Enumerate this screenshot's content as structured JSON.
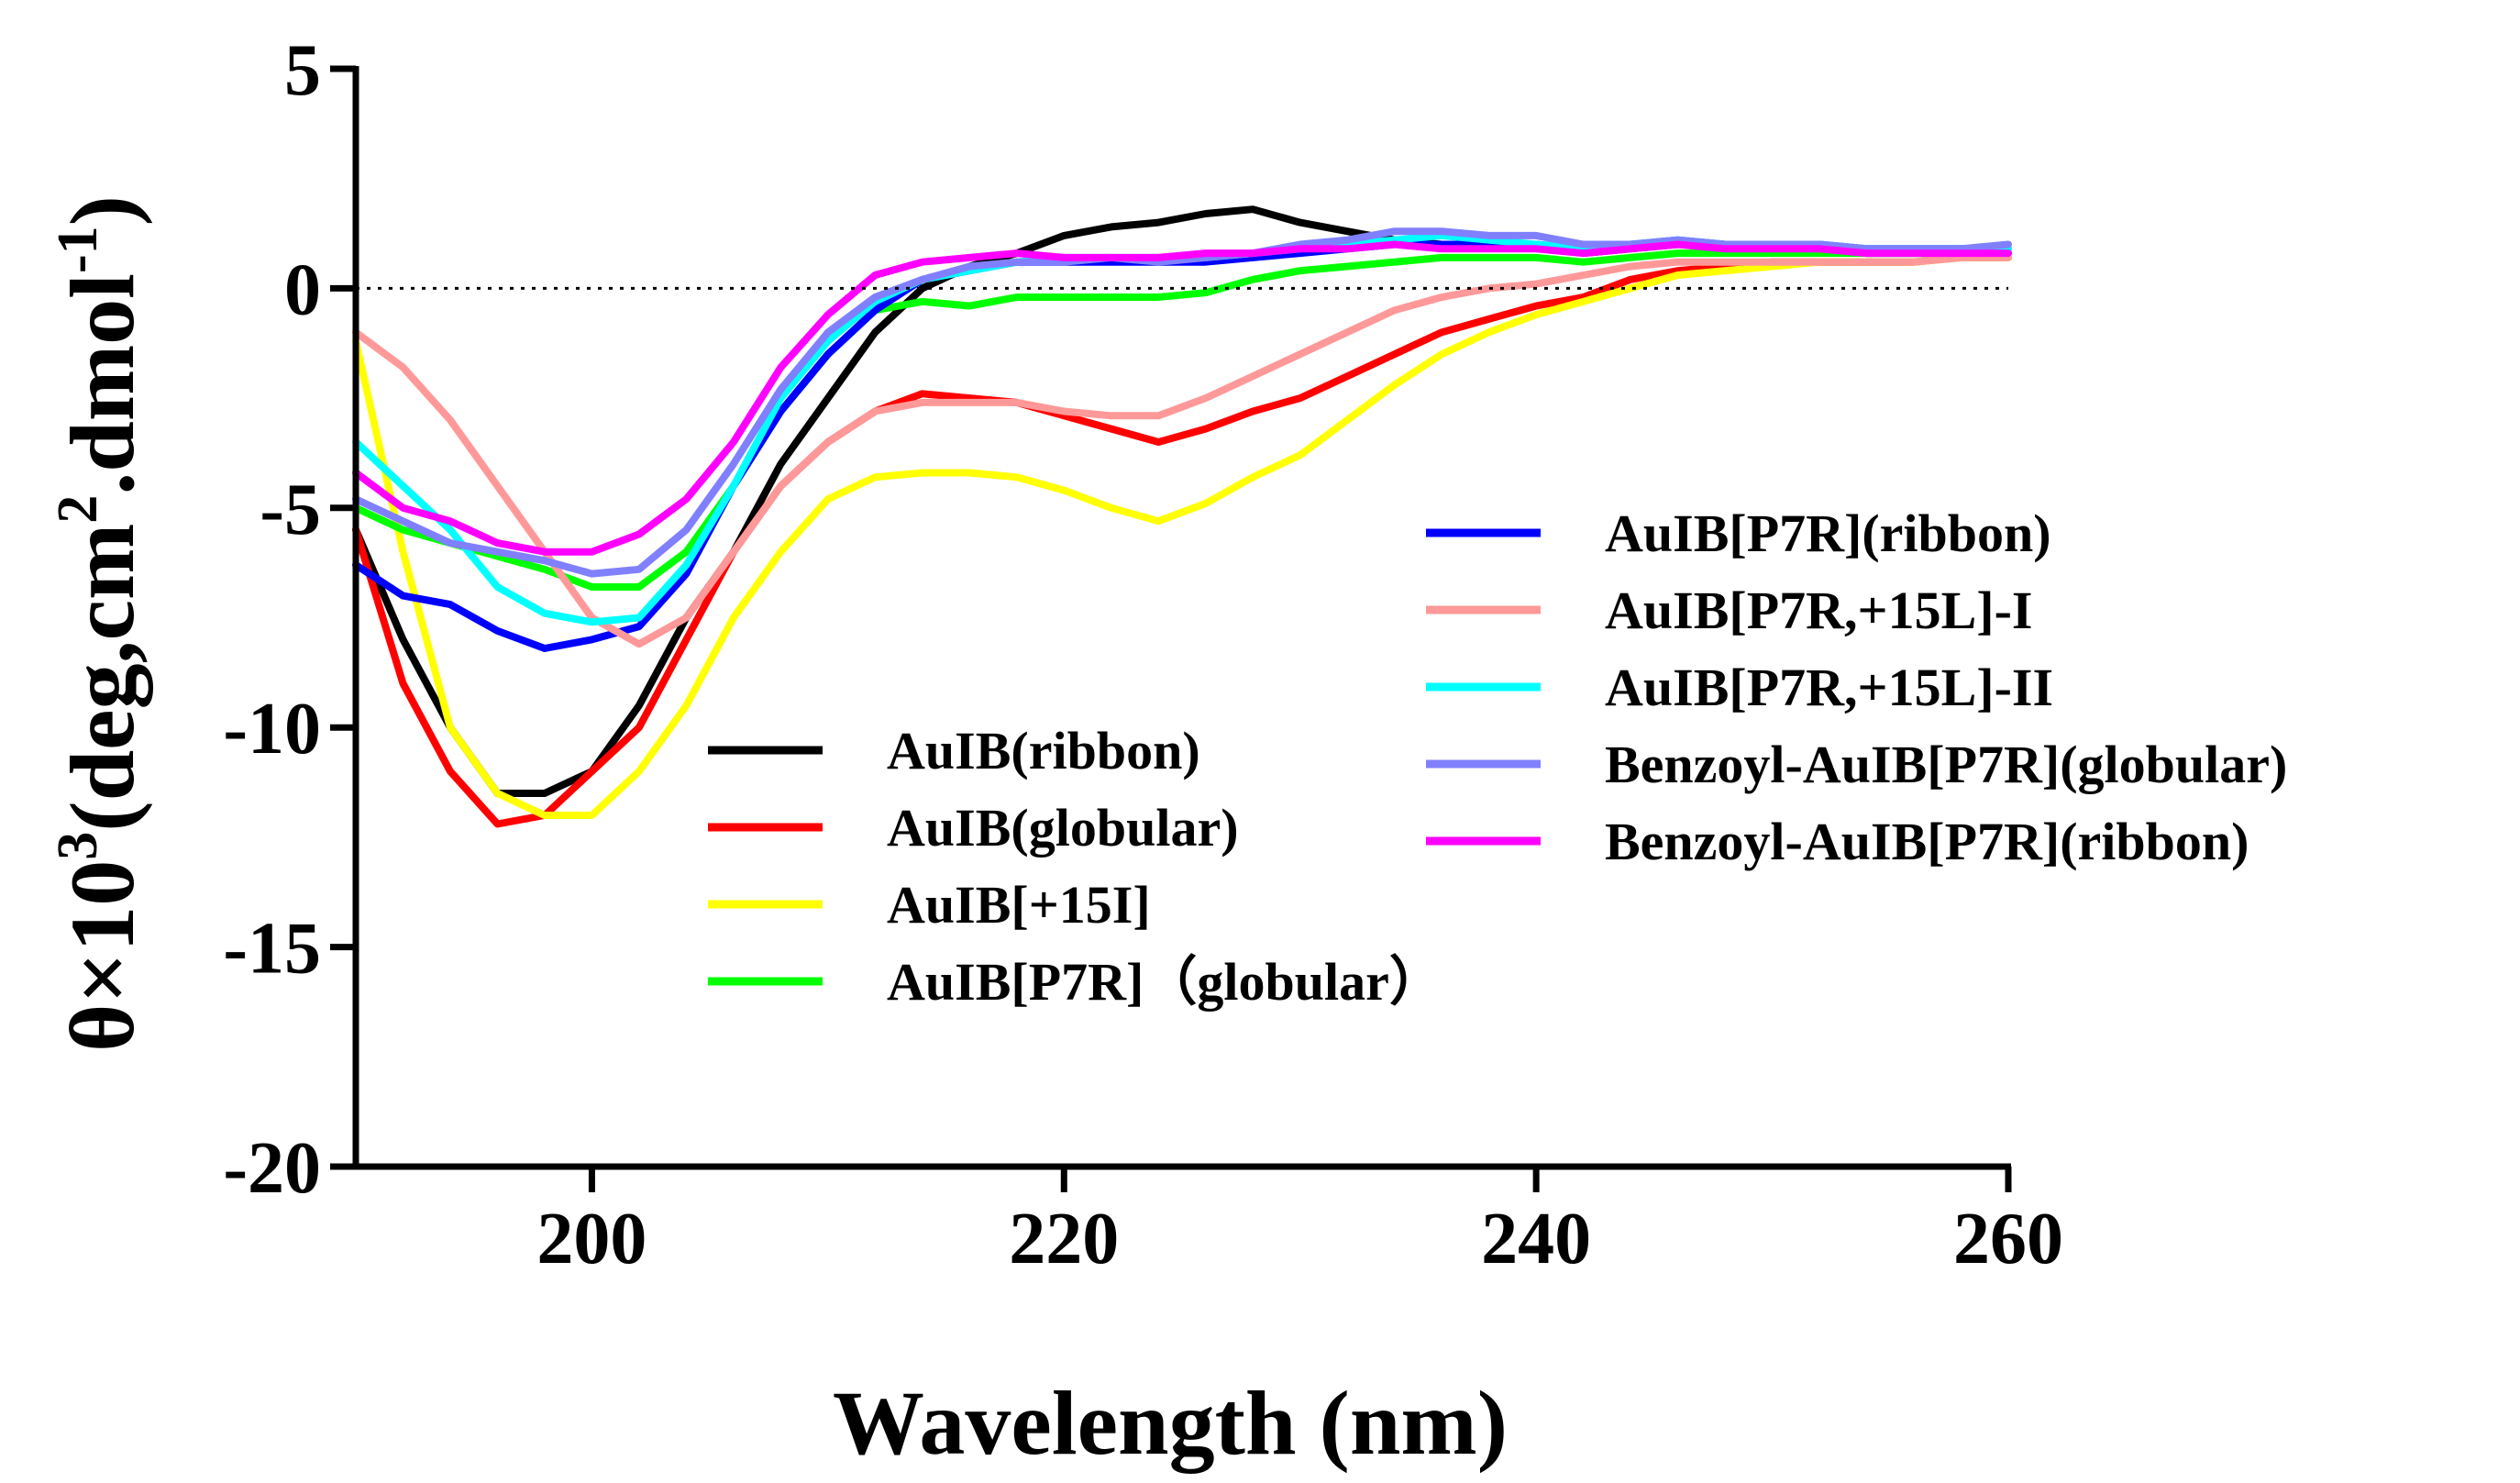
{
  "chart_data": {
    "type": "line",
    "title": "",
    "xlabel": "Wavelength (nm)",
    "ylabel": {
      "prefix": "θ×10",
      "prefix_sup": "3",
      "mid": "(deg,cm",
      "mid_sup": "2",
      "suffix": ".dmol",
      "suffix_sup": "-1",
      "end": ")"
    },
    "xlim": [
      190,
      260
    ],
    "ylim": [
      -20,
      5
    ],
    "xticks": [
      200,
      220,
      240,
      260
    ],
    "xtick_labels": [
      "200",
      "220",
      "240",
      "260"
    ],
    "yticks": [
      5,
      0,
      -5,
      -10,
      -15,
      -20
    ],
    "ytick_labels": [
      "5",
      "0",
      "-5",
      "-10",
      "-15",
      "-20"
    ],
    "zero_line": true,
    "legend_left": [
      {
        "label": "AuIB(ribbon)",
        "color": "#000000"
      },
      {
        "label": "AuIB(globular)",
        "color": "#ff0000"
      },
      {
        "label": "AuIB[+15I]",
        "color": "#ffff00"
      },
      {
        "label": "AuIB[P7R]（globular）",
        "color": "#00ff00"
      }
    ],
    "legend_right": [
      {
        "label": "AuIB[P7R](ribbon)",
        "color": "#0000ff"
      },
      {
        "label": "AuIB[P7R,+15L]-I",
        "color": "#ff9999"
      },
      {
        "label": "AuIB[P7R,+15L]-II",
        "color": "#00ffff"
      },
      {
        "label": "Benzoyl-AuIB[P7R](globular)",
        "color": "#8080ff"
      },
      {
        "label": "Benzoyl-AuIB[P7R](ribbon)",
        "color": "#ff00ff"
      }
    ],
    "x": [
      190,
      192,
      194,
      196,
      198,
      200,
      202,
      204,
      206,
      208,
      210,
      212,
      214,
      216,
      218,
      220,
      222,
      224,
      226,
      228,
      230,
      232,
      234,
      236,
      238,
      240,
      242,
      244,
      246,
      248,
      250,
      252,
      254,
      256,
      258,
      260
    ],
    "series": [
      {
        "name": "AuIB(ribbon)",
        "color": "#000000",
        "values": [
          -5.5,
          -8,
          -10,
          -11.5,
          -11.5,
          -11,
          -9.5,
          -7.5,
          -6,
          -4,
          -2.5,
          -1,
          0,
          0.5,
          0.8,
          1.2,
          1.4,
          1.5,
          1.7,
          1.8,
          1.5,
          1.3,
          1.1,
          1.0,
          1.0,
          1.0,
          0.8,
          0.9,
          1.0,
          1.0,
          0.9,
          0.9,
          0.8,
          0.8,
          0.8,
          0.8
        ]
      },
      {
        "name": "AuIB(globular)",
        "color": "#ff0000",
        "values": [
          -5.5,
          -9,
          -11,
          -12.2,
          -12,
          -11,
          -10,
          -8,
          -6,
          -4.5,
          -3.5,
          -2.8,
          -2.4,
          -2.5,
          -2.6,
          -2.9,
          -3.2,
          -3.5,
          -3.2,
          -2.8,
          -2.5,
          -2.0,
          -1.5,
          -1.0,
          -0.7,
          -0.4,
          -0.2,
          0.2,
          0.4,
          0.5,
          0.6,
          0.6,
          0.6,
          0.6,
          0.7,
          0.7
        ]
      },
      {
        "name": "AuIB[+15I]",
        "color": "#ffff00",
        "values": [
          -1.2,
          -6,
          -10,
          -11.5,
          -12,
          -12,
          -11,
          -9.5,
          -7.5,
          -6,
          -4.8,
          -4.3,
          -4.2,
          -4.2,
          -4.3,
          -4.6,
          -5.0,
          -5.3,
          -4.9,
          -4.3,
          -3.8,
          -3.0,
          -2.2,
          -1.5,
          -1.0,
          -0.6,
          -0.3,
          0.0,
          0.3,
          0.4,
          0.5,
          0.6,
          0.6,
          0.6,
          0.7,
          0.7
        ]
      },
      {
        "name": "AuIB[P7R]（globular）",
        "color": "#00ff00",
        "values": [
          -5,
          -5.5,
          -5.8,
          -6.1,
          -6.4,
          -6.8,
          -6.8,
          -6,
          -4.5,
          -2.8,
          -1.5,
          -0.5,
          -0.3,
          -0.4,
          -0.2,
          -0.2,
          -0.2,
          -0.2,
          -0.1,
          0.2,
          0.4,
          0.5,
          0.6,
          0.7,
          0.7,
          0.7,
          0.6,
          0.7,
          0.8,
          0.8,
          0.8,
          0.8,
          0.8,
          0.8,
          0.8,
          0.9
        ]
      },
      {
        "name": "AuIB[P7R](ribbon)",
        "color": "#0000ff",
        "values": [
          -6.3,
          -7,
          -7.2,
          -7.8,
          -8.2,
          -8,
          -7.7,
          -6.5,
          -4.5,
          -2.8,
          -1.5,
          -0.5,
          0.2,
          0.4,
          0.6,
          0.6,
          0.6,
          0.6,
          0.6,
          0.7,
          0.8,
          0.9,
          1.0,
          1.0,
          1.0,
          1.0,
          0.9,
          1.0,
          1.1,
          1.0,
          1.0,
          1.0,
          0.9,
          0.9,
          0.9,
          0.9
        ]
      },
      {
        "name": "AuIB[P7R,+15L]-I",
        "color": "#ff9999",
        "values": [
          -1,
          -1.8,
          -3,
          -4.5,
          -6,
          -7.5,
          -8.1,
          -7.5,
          -6,
          -4.5,
          -3.5,
          -2.8,
          -2.6,
          -2.6,
          -2.6,
          -2.8,
          -2.9,
          -2.9,
          -2.5,
          -2.0,
          -1.5,
          -1.0,
          -0.5,
          -0.2,
          0.0,
          0.1,
          0.3,
          0.5,
          0.6,
          0.6,
          0.6,
          0.6,
          0.6,
          0.6,
          0.7,
          0.7
        ]
      },
      {
        "name": "AuIB[P7R,+15L]-II",
        "color": "#00ffff",
        "values": [
          -3.5,
          -4.5,
          -5.5,
          -6.8,
          -7.4,
          -7.6,
          -7.5,
          -6.3,
          -4.5,
          -2.5,
          -1.2,
          -0.3,
          0.2,
          0.4,
          0.6,
          0.7,
          0.7,
          0.7,
          0.7,
          0.8,
          0.9,
          1.0,
          1.1,
          1.2,
          1.1,
          1.0,
          0.9,
          1.0,
          1.1,
          1.0,
          1.0,
          1.0,
          0.9,
          0.9,
          0.9,
          0.9
        ]
      },
      {
        "name": "Benzoyl-AuIB[P7R](globular)",
        "color": "#8080ff",
        "values": [
          -4.8,
          -5.3,
          -5.8,
          -6.0,
          -6.2,
          -6.5,
          -6.4,
          -5.5,
          -4,
          -2.3,
          -1.0,
          -0.2,
          0.2,
          0.5,
          0.6,
          0.6,
          0.7,
          0.6,
          0.7,
          0.8,
          1.0,
          1.1,
          1.3,
          1.3,
          1.2,
          1.2,
          1.0,
          1.0,
          1.1,
          1.0,
          1.0,
          1.0,
          0.9,
          0.9,
          0.9,
          1.0
        ]
      },
      {
        "name": "Benzoyl-AuIB[P7R](ribbon)",
        "color": "#ff00ff",
        "values": [
          -4.2,
          -5,
          -5.3,
          -5.8,
          -6.0,
          -6.0,
          -5.6,
          -4.8,
          -3.5,
          -1.8,
          -0.6,
          0.3,
          0.6,
          0.7,
          0.8,
          0.7,
          0.7,
          0.7,
          0.8,
          0.8,
          0.9,
          0.9,
          1.0,
          0.9,
          0.9,
          0.9,
          0.8,
          0.9,
          1.0,
          0.9,
          0.9,
          0.9,
          0.8,
          0.8,
          0.8,
          0.8
        ]
      }
    ]
  }
}
